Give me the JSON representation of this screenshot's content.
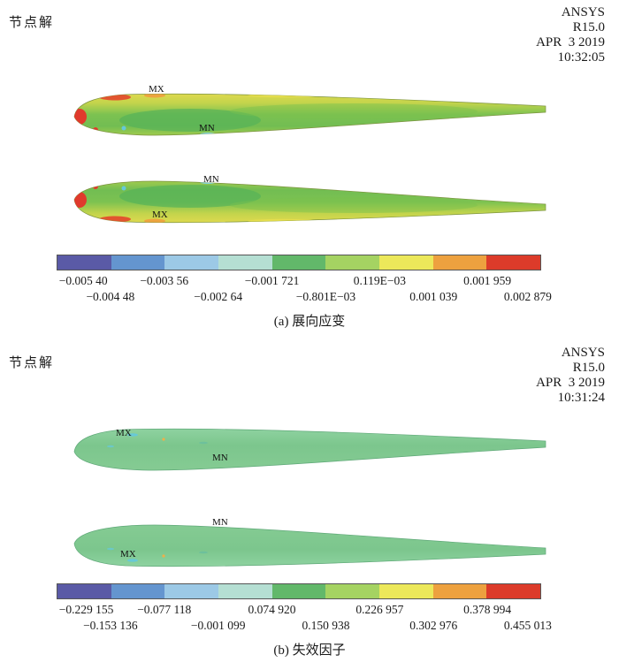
{
  "panels": [
    {
      "node_solution_label": "节点解",
      "ansys": {
        "name": "ANSYS",
        "version": "R15.0",
        "date": "APR  3 2019",
        "time": "10:32:05"
      },
      "blade_top": {
        "label_upper": "MX",
        "label_lower": "MN"
      },
      "blade_bottom": {
        "label_upper": "MN",
        "label_lower": "MX"
      },
      "legend": {
        "colors": [
          "#5a5aa6",
          "#6495cf",
          "#9cc9e6",
          "#b5dfd3",
          "#62b86a",
          "#a5d362",
          "#ece85a",
          "#eda13f",
          "#dc3b2a"
        ],
        "row1": [
          "−0.005 40",
          "−0.003 56",
          "−0.001 721",
          "0.119E−03",
          "0.001 959"
        ],
        "row2": [
          "−0.004 48",
          "−0.002 64",
          "−0.801E−03",
          "0.001 039",
          "0.002 879"
        ]
      },
      "caption": "(a) 展向应变"
    },
    {
      "node_solution_label": "节点解",
      "ansys": {
        "name": "ANSYS",
        "version": "R15.0",
        "date": "APR  3 2019",
        "time": "10:31:24"
      },
      "blade_top": {
        "label_upper": "MX",
        "label_lower": "MN"
      },
      "blade_bottom": {
        "label_upper": "MN",
        "label_lower": "MX"
      },
      "legend": {
        "colors": [
          "#5a5aa6",
          "#6495cf",
          "#9cc9e6",
          "#b5dfd3",
          "#62b86a",
          "#a5d362",
          "#ece85a",
          "#eda13f",
          "#dc3b2a"
        ],
        "row1": [
          "−0.229 155",
          "−0.077 118",
          "0.074 920",
          "0.226 957",
          "0.378 994"
        ],
        "row2": [
          "−0.153 136",
          "−0.001 099",
          "0.150 938",
          "0.302 976",
          "0.455 013"
        ]
      },
      "caption": "(b) 失效因子"
    }
  ],
  "chart_data": [
    {
      "type": "heatmap",
      "title": "(a) 展向应变",
      "header_label": "节点解",
      "software": "ANSYS",
      "software_version": "R15.0",
      "date": "APR 3 2019",
      "time": "10:32:05",
      "marker_labels": [
        "MX",
        "MN"
      ],
      "colorbar": {
        "colors": [
          "#5a5aa6",
          "#6495cf",
          "#9cc9e6",
          "#b5dfd3",
          "#62b86a",
          "#a5d362",
          "#ece85a",
          "#eda13f",
          "#dc3b2a"
        ],
        "boundaries": [
          -0.0054,
          -0.00448,
          -0.00356,
          -0.00264,
          -0.001721,
          -0.000801,
          0.000119,
          0.001039,
          0.001959,
          0.002879
        ],
        "min": -0.0054,
        "max": 0.002879
      }
    },
    {
      "type": "heatmap",
      "title": "(b) 失效因子",
      "header_label": "节点解",
      "software": "ANSYS",
      "software_version": "R15.0",
      "date": "APR 3 2019",
      "time": "10:31:24",
      "marker_labels": [
        "MX",
        "MN"
      ],
      "colorbar": {
        "colors": [
          "#5a5aa6",
          "#6495cf",
          "#9cc9e6",
          "#b5dfd3",
          "#62b86a",
          "#a5d362",
          "#ece85a",
          "#eda13f",
          "#dc3b2a"
        ],
        "boundaries": [
          -0.229155,
          -0.153136,
          -0.077118,
          -0.001099,
          0.07492,
          0.150938,
          0.226957,
          0.302976,
          0.378994,
          0.455013
        ],
        "min": -0.229155,
        "max": 0.455013
      }
    }
  ]
}
